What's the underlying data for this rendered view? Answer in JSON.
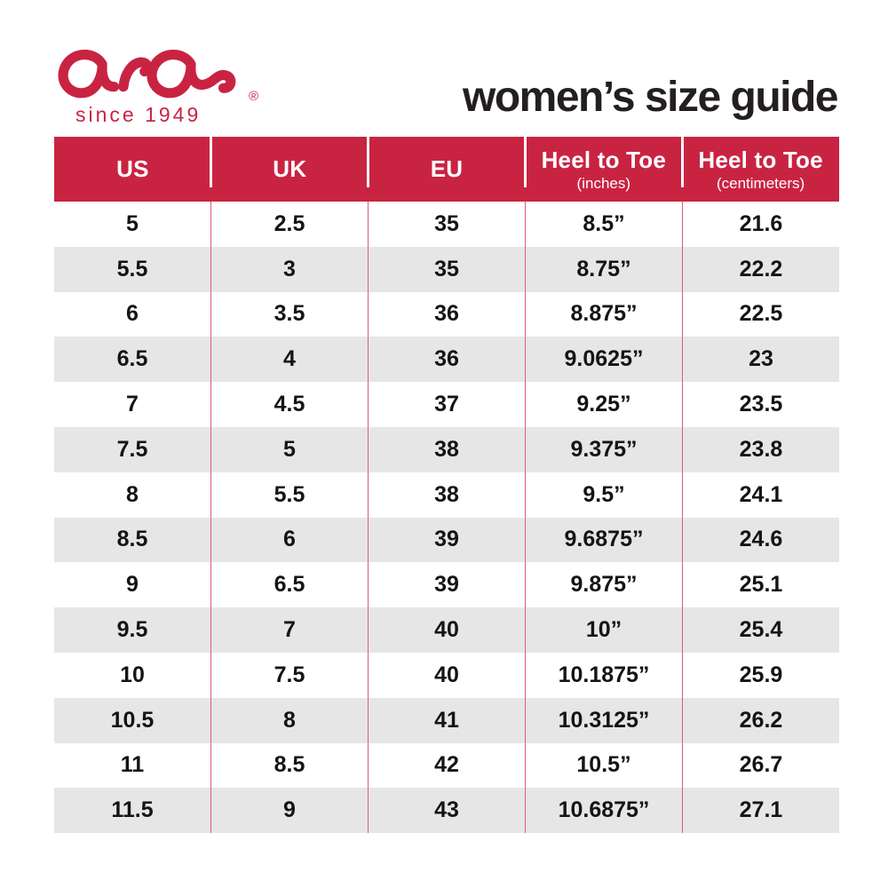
{
  "brand": {
    "logo_text": "ara",
    "registered_mark": "®",
    "tagline": "since 1949"
  },
  "colors": {
    "brand_red": "#C92342",
    "row_alt_gray": "#E6E6E6",
    "divider_red": "#DB5E72"
  },
  "chart_data": {
    "type": "table",
    "title": "women’s size guide",
    "columns": [
      {
        "label": "US",
        "sub": ""
      },
      {
        "label": "UK",
        "sub": ""
      },
      {
        "label": "EU",
        "sub": ""
      },
      {
        "label": "Heel to Toe",
        "sub": "(inches)"
      },
      {
        "label": "Heel to Toe",
        "sub": "(centimeters)"
      }
    ],
    "rows": [
      [
        "5",
        "2.5",
        "35",
        "8.5”",
        "21.6"
      ],
      [
        "5.5",
        "3",
        "35",
        "8.75”",
        "22.2"
      ],
      [
        "6",
        "3.5",
        "36",
        "8.875”",
        "22.5"
      ],
      [
        "6.5",
        "4",
        "36",
        "9.0625”",
        "23"
      ],
      [
        "7",
        "4.5",
        "37",
        "9.25”",
        "23.5"
      ],
      [
        "7.5",
        "5",
        "38",
        "9.375”",
        "23.8"
      ],
      [
        "8",
        "5.5",
        "38",
        "9.5”",
        "24.1"
      ],
      [
        "8.5",
        "6",
        "39",
        "9.6875”",
        "24.6"
      ],
      [
        "9",
        "6.5",
        "39",
        "9.875”",
        "25.1"
      ],
      [
        "9.5",
        "7",
        "40",
        "10”",
        "25.4"
      ],
      [
        "10",
        "7.5",
        "40",
        "10.1875”",
        "25.9"
      ],
      [
        "10.5",
        "8",
        "41",
        "10.3125”",
        "26.2"
      ],
      [
        "11",
        "8.5",
        "42",
        "10.5”",
        "26.7"
      ],
      [
        "11.5",
        "9",
        "43",
        "10.6875”",
        "27.1"
      ]
    ]
  }
}
